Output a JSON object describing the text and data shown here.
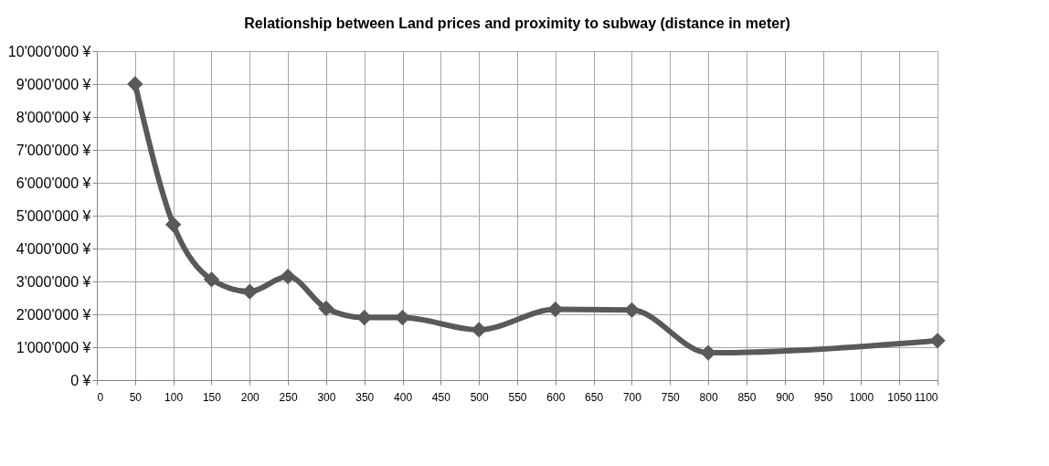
{
  "chart_data": {
    "type": "line",
    "title": "Relationship between Land prices and proximity to subway (distance in meter)",
    "x": [
      50,
      100,
      150,
      200,
      250,
      300,
      350,
      400,
      500,
      600,
      700,
      800,
      1100
    ],
    "series": [
      {
        "color": "#595959",
        "values": [
          9000000,
          4730000,
          3060000,
          2690000,
          3150000,
          2180000,
          1900000,
          1900000,
          1530000,
          2150000,
          2130000,
          830000,
          1200000
        ]
      }
    ],
    "xlim": [
      0,
      1100
    ],
    "xticks": [
      0,
      50,
      100,
      150,
      200,
      250,
      300,
      350,
      400,
      450,
      500,
      550,
      600,
      650,
      700,
      750,
      800,
      850,
      900,
      950,
      1000,
      1050,
      1100
    ],
    "ylim": [
      0,
      10000000
    ],
    "yticks": [
      {
        "value": 0,
        "label": "0 ¥"
      },
      {
        "value": 1000000,
        "label": "1'000'000 ¥"
      },
      {
        "value": 2000000,
        "label": "2'000'000 ¥"
      },
      {
        "value": 3000000,
        "label": "3'000'000 ¥"
      },
      {
        "value": 4000000,
        "label": "4'000'000 ¥"
      },
      {
        "value": 5000000,
        "label": "5'000'000 ¥"
      },
      {
        "value": 6000000,
        "label": "6'000'000 ¥"
      },
      {
        "value": 7000000,
        "label": "7'000'000 ¥"
      },
      {
        "value": 8000000,
        "label": "8'000'000 ¥"
      },
      {
        "value": 9000000,
        "label": "9'000'000 ¥"
      },
      {
        "value": 10000000,
        "label": "10'000'000 ¥"
      }
    ],
    "grid": true,
    "marker": "diamond",
    "line_style": "solid"
  }
}
